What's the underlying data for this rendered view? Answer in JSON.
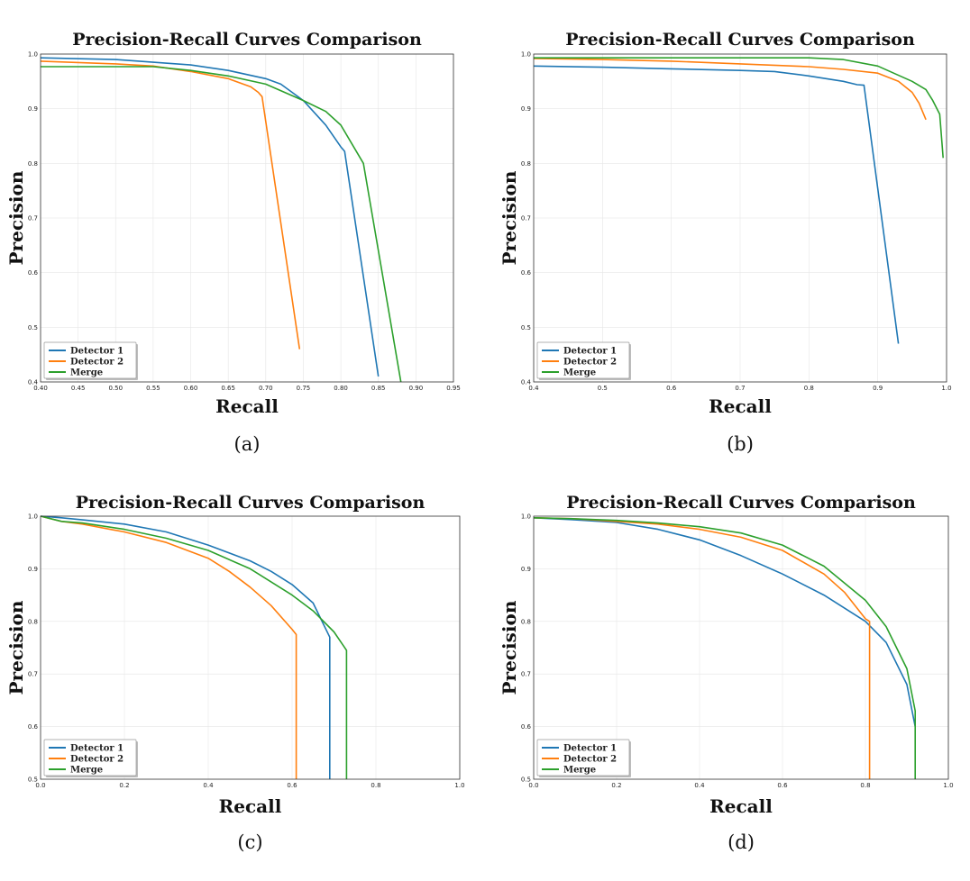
{
  "colors": {
    "detector1": "#1f77b4",
    "detector2": "#ff7f0e",
    "merge": "#2ca02c"
  },
  "chart_data": [
    {
      "type": "line",
      "caption": "(a)",
      "title": "Precision-Recall Curves Comparison",
      "xlabel": "Recall",
      "ylabel": "Precision",
      "xlim": [
        0.4,
        0.95
      ],
      "ylim": [
        0.4,
        1.0
      ],
      "xticks": [
        "0.40",
        "0.45",
        "0.50",
        "0.55",
        "0.60",
        "0.65",
        "0.70",
        "0.75",
        "0.80",
        "0.85",
        "0.90",
        "0.95"
      ],
      "yticks": [
        "0.4",
        "0.5",
        "0.6",
        "0.7",
        "0.8",
        "0.9",
        "1.0"
      ],
      "legend": "lower-left",
      "series": [
        {
          "name": "Detector 1",
          "x": [
            0.4,
            0.5,
            0.6,
            0.65,
            0.7,
            0.72,
            0.75,
            0.78,
            0.8,
            0.805,
            0.85
          ],
          "y": [
            0.993,
            0.99,
            0.98,
            0.97,
            0.955,
            0.945,
            0.915,
            0.87,
            0.83,
            0.822,
            0.41
          ]
        },
        {
          "name": "Detector 2",
          "x": [
            0.4,
            0.5,
            0.55,
            0.6,
            0.65,
            0.68,
            0.69,
            0.695,
            0.745
          ],
          "y": [
            0.987,
            0.982,
            0.978,
            0.968,
            0.955,
            0.94,
            0.93,
            0.922,
            0.46
          ]
        },
        {
          "name": "Merge",
          "x": [
            0.4,
            0.5,
            0.55,
            0.6,
            0.65,
            0.7,
            0.75,
            0.78,
            0.8,
            0.83,
            0.88
          ],
          "y": [
            0.977,
            0.977,
            0.977,
            0.97,
            0.96,
            0.945,
            0.915,
            0.895,
            0.87,
            0.8,
            0.4
          ]
        }
      ]
    },
    {
      "type": "line",
      "caption": "(b)",
      "title": "Precision-Recall Curves Comparison",
      "xlabel": "Recall",
      "ylabel": "Precision",
      "xlim": [
        0.4,
        1.0
      ],
      "ylim": [
        0.4,
        1.0
      ],
      "xticks": [
        "0.4",
        "0.5",
        "0.6",
        "0.7",
        "0.8",
        "0.9",
        "1.0"
      ],
      "yticks": [
        "0.4",
        "0.5",
        "0.6",
        "0.7",
        "0.8",
        "0.9",
        "1.0"
      ],
      "legend": "lower-left",
      "series": [
        {
          "name": "Detector 1",
          "x": [
            0.4,
            0.5,
            0.6,
            0.7,
            0.75,
            0.8,
            0.85,
            0.87,
            0.88,
            0.93
          ],
          "y": [
            0.978,
            0.976,
            0.973,
            0.97,
            0.968,
            0.96,
            0.95,
            0.944,
            0.943,
            0.47
          ]
        },
        {
          "name": "Detector 2",
          "x": [
            0.4,
            0.5,
            0.6,
            0.7,
            0.8,
            0.85,
            0.9,
            0.93,
            0.95,
            0.96,
            0.97
          ],
          "y": [
            0.992,
            0.99,
            0.987,
            0.982,
            0.977,
            0.972,
            0.965,
            0.95,
            0.93,
            0.91,
            0.88
          ]
        },
        {
          "name": "Merge",
          "x": [
            0.4,
            0.5,
            0.6,
            0.7,
            0.8,
            0.85,
            0.9,
            0.95,
            0.97,
            0.98,
            0.99,
            0.995
          ],
          "y": [
            0.993,
            0.993,
            0.993,
            0.993,
            0.993,
            0.99,
            0.978,
            0.95,
            0.935,
            0.915,
            0.89,
            0.81
          ]
        }
      ]
    },
    {
      "type": "line",
      "caption": "(c)",
      "title": "Precision-Recall Curves Comparison",
      "xlabel": "Recall",
      "ylabel": "Precision",
      "xlim": [
        0.0,
        1.0
      ],
      "ylim": [
        0.5,
        1.0
      ],
      "xticks": [
        "0.0",
        "0.2",
        "0.4",
        "0.6",
        "0.8",
        "1.0"
      ],
      "yticks": [
        "0.5",
        "0.6",
        "0.7",
        "0.8",
        "0.9",
        "1.0"
      ],
      "legend": "lower-left",
      "series": [
        {
          "name": "Detector 1",
          "x": [
            0.0,
            0.05,
            0.1,
            0.2,
            0.3,
            0.4,
            0.5,
            0.55,
            0.6,
            0.65,
            0.69,
            0.69
          ],
          "y": [
            1.0,
            0.997,
            0.993,
            0.985,
            0.97,
            0.945,
            0.915,
            0.895,
            0.87,
            0.835,
            0.77,
            0.5
          ]
        },
        {
          "name": "Detector 2",
          "x": [
            0.0,
            0.05,
            0.1,
            0.2,
            0.3,
            0.4,
            0.45,
            0.5,
            0.55,
            0.6,
            0.61,
            0.61
          ],
          "y": [
            1.0,
            0.99,
            0.985,
            0.97,
            0.95,
            0.92,
            0.895,
            0.865,
            0.83,
            0.785,
            0.775,
            0.5
          ]
        },
        {
          "name": "Merge",
          "x": [
            0.0,
            0.05,
            0.1,
            0.2,
            0.3,
            0.4,
            0.5,
            0.6,
            0.65,
            0.7,
            0.73,
            0.73
          ],
          "y": [
            1.0,
            0.99,
            0.987,
            0.975,
            0.958,
            0.935,
            0.9,
            0.85,
            0.82,
            0.78,
            0.745,
            0.5
          ]
        }
      ]
    },
    {
      "type": "line",
      "caption": "(d)",
      "title": "Precision-Recall Curves Comparison",
      "xlabel": "Recall",
      "ylabel": "Precision",
      "xlim": [
        0.0,
        1.0
      ],
      "ylim": [
        0.5,
        1.0
      ],
      "xticks": [
        "0.0",
        "0.2",
        "0.4",
        "0.6",
        "0.8",
        "1.0"
      ],
      "yticks": [
        "0.5",
        "0.6",
        "0.7",
        "0.8",
        "0.9",
        "1.0"
      ],
      "legend": "lower-left",
      "series": [
        {
          "name": "Detector 1",
          "x": [
            0.0,
            0.1,
            0.2,
            0.3,
            0.4,
            0.5,
            0.6,
            0.7,
            0.8,
            0.85,
            0.9,
            0.92
          ],
          "y": [
            0.997,
            0.993,
            0.988,
            0.975,
            0.955,
            0.925,
            0.89,
            0.85,
            0.8,
            0.76,
            0.68,
            0.6
          ]
        },
        {
          "name": "Detector 2",
          "x": [
            0.0,
            0.1,
            0.2,
            0.3,
            0.4,
            0.5,
            0.6,
            0.7,
            0.75,
            0.8,
            0.81,
            0.81
          ],
          "y": [
            0.997,
            0.995,
            0.99,
            0.985,
            0.975,
            0.96,
            0.935,
            0.89,
            0.855,
            0.805,
            0.8,
            0.5
          ]
        },
        {
          "name": "Merge",
          "x": [
            0.0,
            0.1,
            0.2,
            0.3,
            0.4,
            0.5,
            0.6,
            0.7,
            0.8,
            0.85,
            0.9,
            0.92,
            0.92
          ],
          "y": [
            0.997,
            0.995,
            0.992,
            0.987,
            0.98,
            0.968,
            0.945,
            0.905,
            0.84,
            0.79,
            0.71,
            0.63,
            0.5
          ]
        }
      ]
    }
  ]
}
